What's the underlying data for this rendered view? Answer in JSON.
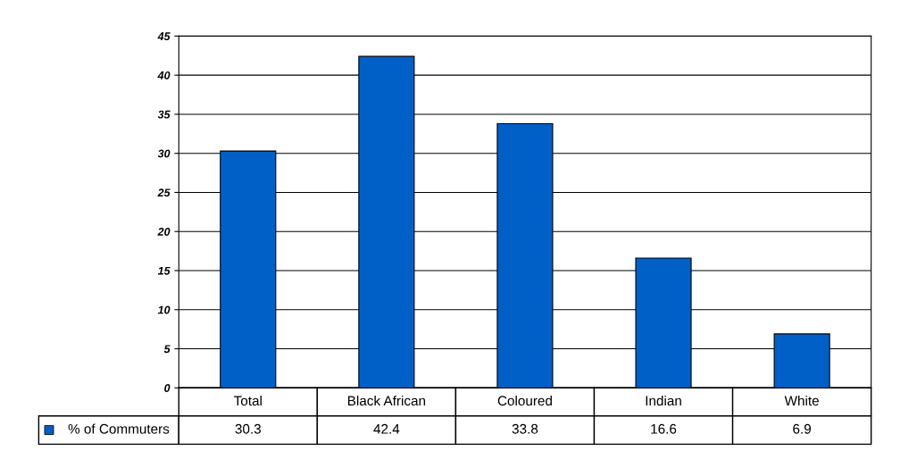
{
  "chart_data": {
    "type": "bar",
    "categories": [
      "Total",
      "Black African",
      "Coloured",
      "Indian",
      "White"
    ],
    "series": [
      {
        "name": "% of Commuters",
        "color": "#0060c8",
        "values": [
          30.3,
          42.4,
          33.8,
          16.6,
          6.9
        ]
      }
    ],
    "ylim": [
      0,
      45
    ],
    "yticks": [
      0,
      5,
      10,
      15,
      20,
      25,
      30,
      35,
      40,
      45
    ],
    "grid": "y",
    "data_labels": true
  }
}
